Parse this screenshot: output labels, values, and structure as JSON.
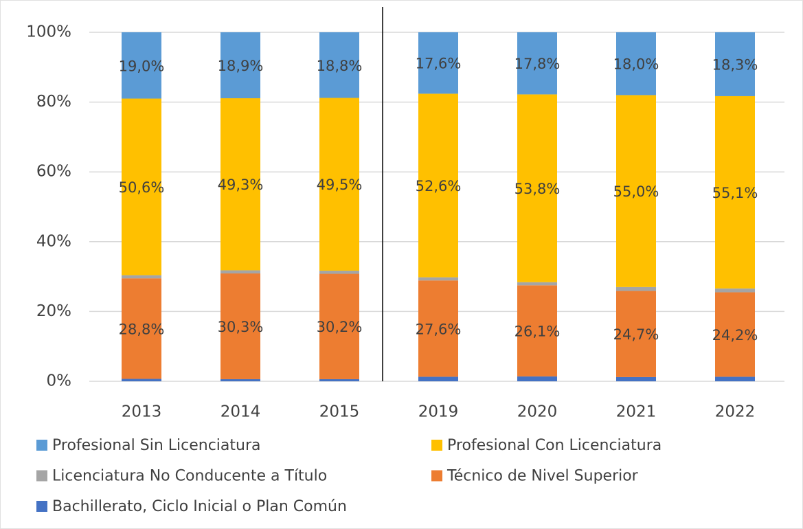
{
  "chart_data": {
    "type": "stacked_bar",
    "categories": [
      "2013",
      "2014",
      "2015",
      "2019",
      "2020",
      "2021",
      "2022"
    ],
    "series": [
      {
        "name": "Profesional Sin Licenciatura",
        "color": "#5b9bd5",
        "values": [
          19.0,
          18.9,
          18.8,
          17.6,
          17.8,
          18.0,
          18.3
        ],
        "value_labels": [
          "19,0%",
          "18,9%",
          "18,8%",
          "17,6%",
          "17,8%",
          "18,0%",
          "18,3%"
        ]
      },
      {
        "name": "Profesional Con Licenciatura",
        "color": "#ffc000",
        "values": [
          50.6,
          49.3,
          49.5,
          52.6,
          53.8,
          55.0,
          55.1
        ],
        "value_labels": [
          "50,6%",
          "49,3%",
          "49,5%",
          "52,6%",
          "53,8%",
          "55,0%",
          "55,1%"
        ]
      },
      {
        "name": "Licenciatura No Conducente a Título",
        "color": "#a5a5a5",
        "values": [
          0.9,
          0.9,
          0.9,
          0.9,
          0.9,
          1.1,
          1.1
        ]
      },
      {
        "name": "Técnico de Nivel Superior",
        "color": "#ed7d31",
        "values": [
          28.8,
          30.3,
          30.2,
          27.6,
          26.1,
          24.7,
          24.2
        ],
        "value_labels": [
          "28,8%",
          "30,3%",
          "30,2%",
          "27,6%",
          "26,1%",
          "24,7%",
          "24,2%"
        ]
      },
      {
        "name": "Bachillerato, Ciclo Inicial o Plan Común",
        "color": "#4472c4",
        "values": [
          0.7,
          0.6,
          0.6,
          1.3,
          1.4,
          1.2,
          1.3
        ]
      }
    ],
    "ylim": [
      0,
      100
    ],
    "yticks": [
      {
        "value": 0,
        "label": "0%"
      },
      {
        "value": 20,
        "label": "20%"
      },
      {
        "value": 40,
        "label": "40%"
      },
      {
        "value": 60,
        "label": "60%"
      },
      {
        "value": 80,
        "label": "80%"
      },
      {
        "value": 100,
        "label": "100%"
      }
    ],
    "grid": true
  }
}
